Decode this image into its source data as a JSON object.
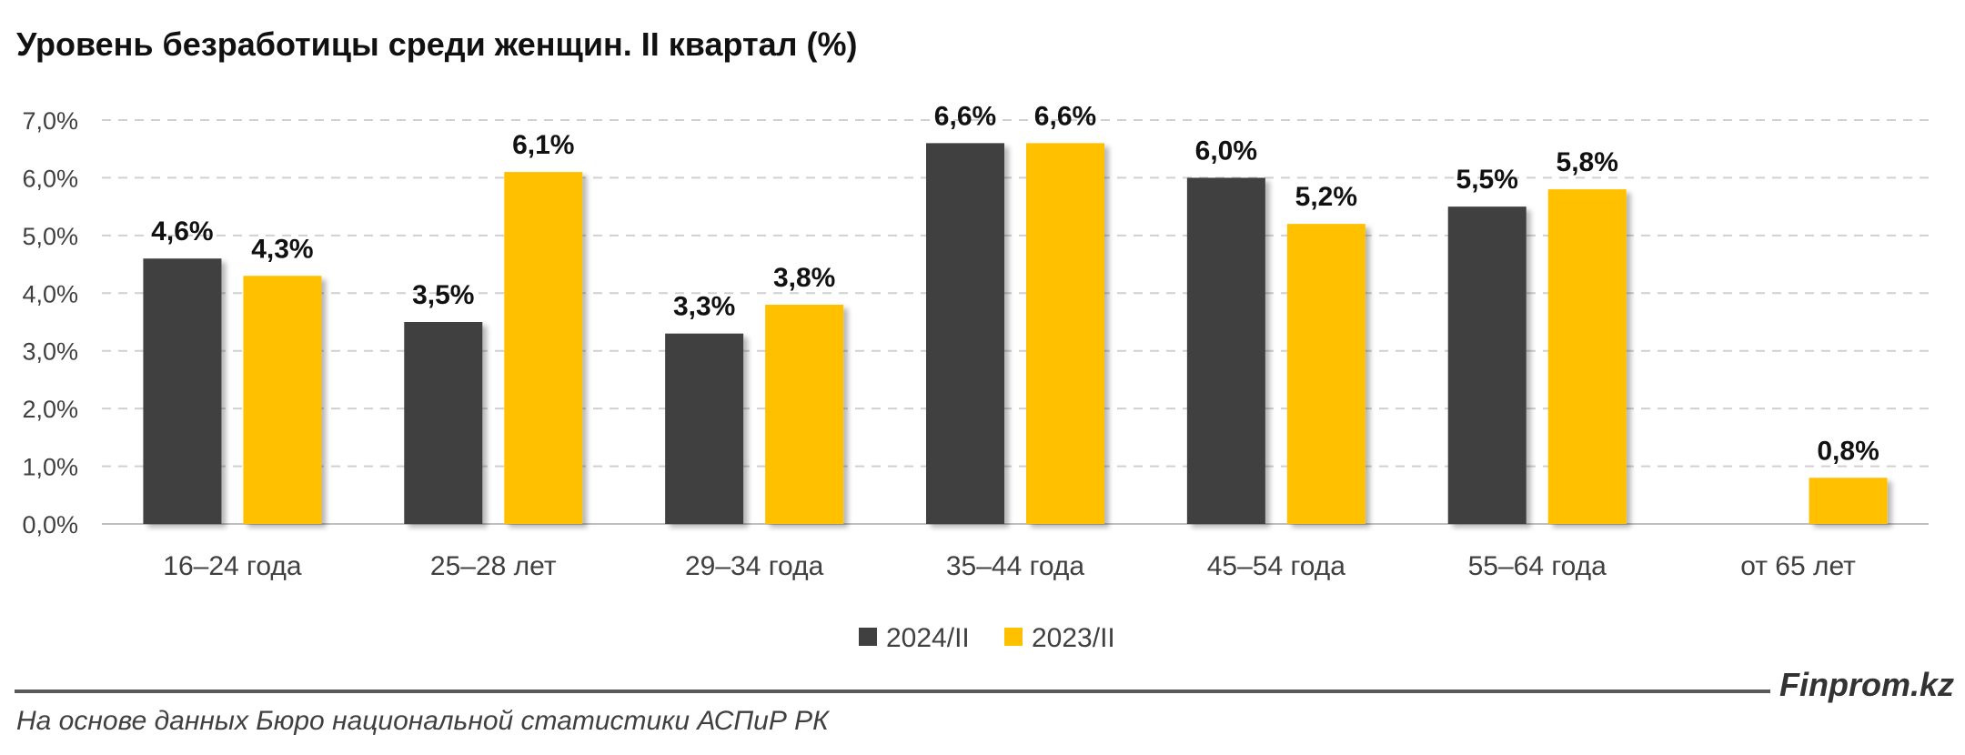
{
  "header": {
    "title": "Уровень безработицы среди женщин. II квартал (%)"
  },
  "chart_data": {
    "type": "bar",
    "title": "Уровень безработицы среди женщин. II квартал (%)",
    "categories": [
      "16–24 года",
      "25–28 лет",
      "29–34 года",
      "35–44 года",
      "45–54 года",
      "55–64 года",
      "от 65 лет"
    ],
    "series": [
      {
        "name": "2024/II",
        "color": "#404040",
        "values": [
          4.6,
          3.5,
          3.3,
          6.6,
          6.0,
          5.5,
          null
        ],
        "labels": [
          "4,6%",
          "3,5%",
          "3,3%",
          "6,6%",
          "6,0%",
          "5,5%",
          ""
        ]
      },
      {
        "name": "2023/II",
        "color": "#FFC000",
        "values": [
          4.3,
          6.1,
          3.8,
          6.6,
          5.2,
          5.8,
          0.8
        ],
        "labels": [
          "4,3%",
          "6,1%",
          "3,8%",
          "6,6%",
          "5,2%",
          "5,8%",
          "0,8%"
        ]
      }
    ],
    "ylim": [
      0,
      7
    ],
    "yticks": [
      0,
      1,
      2,
      3,
      4,
      5,
      6,
      7
    ],
    "ytick_labels": [
      "0,0%",
      "1,0%",
      "2,0%",
      "3,0%",
      "4,0%",
      "5,0%",
      "6,0%",
      "7,0%"
    ],
    "grid": true,
    "legend_position": "bottom"
  },
  "footer": {
    "brand": "Finprom.kz",
    "source": "На основе данных Бюро национальной статистики АСПиР РК"
  }
}
